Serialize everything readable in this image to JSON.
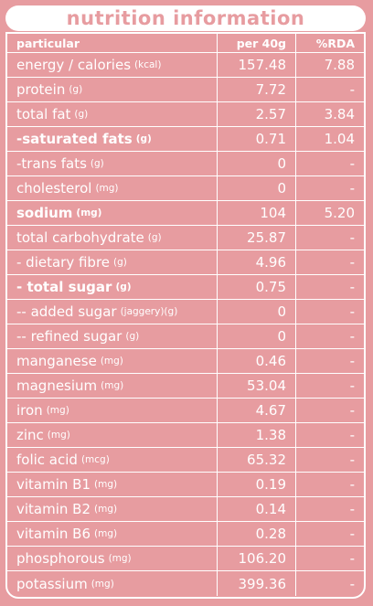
{
  "title": "nutrition information",
  "headers": {
    "particular": "particular",
    "per": "per 40g",
    "rda": "%RDA"
  },
  "rows": [
    {
      "name": "energy / calories",
      "unit": "(kcal)",
      "per": "157.48",
      "rda": "7.88",
      "bold": false
    },
    {
      "name": "protein",
      "unit": "(g)",
      "per": "7.72",
      "rda": "-",
      "bold": false
    },
    {
      "name": "total fat",
      "unit": "(g)",
      "per": "2.57",
      "rda": "3.84",
      "bold": false
    },
    {
      "name": "-saturated fats",
      "unit": "(g)",
      "per": "0.71",
      "rda": "1.04",
      "bold": true
    },
    {
      "name": "-trans fats",
      "unit": "(g)",
      "per": "0",
      "rda": "-",
      "bold": false
    },
    {
      "name": "cholesterol",
      "unit": "(mg)",
      "per": "0",
      "rda": "-",
      "bold": false
    },
    {
      "name": "sodium",
      "unit": "(mg)",
      "per": "104",
      "rda": "5.20",
      "bold": true
    },
    {
      "name": "total carbohydrate",
      "unit": "(g)",
      "per": "25.87",
      "rda": "-",
      "bold": false
    },
    {
      "name": "- dietary fibre",
      "unit": "(g)",
      "per": "4.96",
      "rda": "-",
      "bold": false
    },
    {
      "name": "- total sugar",
      "unit": "(g)",
      "per": "0.75",
      "rda": "-",
      "bold": true
    },
    {
      "name": "-- added sugar",
      "unit": "(jaggery)(g)",
      "per": "0",
      "rda": "-",
      "bold": false
    },
    {
      "name": "-- refined sugar",
      "unit": "(g)",
      "per": "0",
      "rda": "-",
      "bold": false
    },
    {
      "name": "manganese",
      "unit": "(mg)",
      "per": "0.46",
      "rda": "-",
      "bold": false
    },
    {
      "name": "magnesium",
      "unit": "(mg)",
      "per": "53.04",
      "rda": "-",
      "bold": false
    },
    {
      "name": "iron",
      "unit": "(mg)",
      "per": "4.67",
      "rda": "-",
      "bold": false
    },
    {
      "name": "zinc",
      "unit": "(mg)",
      "per": "1.38",
      "rda": "-",
      "bold": false
    },
    {
      "name": "folic acid",
      "unit": "(mcg)",
      "per": "65.32",
      "rda": "-",
      "bold": false
    },
    {
      "name": "vitamin B1",
      "unit": "(mg)",
      "per": "0.19",
      "rda": "-",
      "bold": false
    },
    {
      "name": "vitamin B2",
      "unit": "(mg)",
      "per": "0.14",
      "rda": "-",
      "bold": false
    },
    {
      "name": "vitamin B6",
      "unit": "(mg)",
      "per": "0.28",
      "rda": "-",
      "bold": false
    },
    {
      "name": "phosphorous",
      "unit": "(mg)",
      "per": "106.20",
      "rda": "-",
      "bold": false
    },
    {
      "name": "potassium",
      "unit": "(mg)",
      "per": "399.36",
      "rda": "-",
      "bold": false
    }
  ],
  "colors": {
    "background": "#e79ca0",
    "text": "#ffffff"
  }
}
